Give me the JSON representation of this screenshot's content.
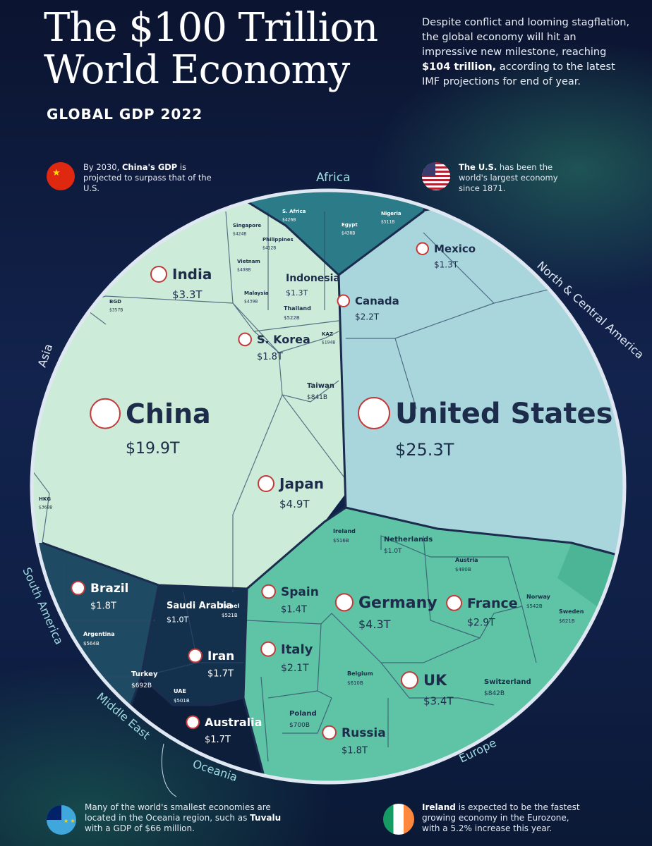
{
  "header": {
    "title": "The $100 Trillion World Economy",
    "subtitle": "GLOBAL GDP 2022",
    "intro_pre": "Despite conflict and looming stagflation, the global economy will hit an impressive new milestone, reaching ",
    "intro_bold": "$104 trillion,",
    "intro_post": " according to the latest IMF projections for end of year."
  },
  "notes": {
    "china_pre": "By 2030, ",
    "china_bold": "China's GDP",
    "china_post": " is projected to surpass that of the U.S.",
    "us_bold": "The U.S.",
    "us_post": " has been the world's largest economy since 1871.",
    "oceania_pre": "Many of the world's smallest economies are located in the Oceania region, such as ",
    "oceania_bold": "Tuvalu",
    "oceania_post": " with a GDP of $66 million.",
    "ireland_bold": "Ireland",
    "ireland_post": " is expected to be the fastest growing economy in the Eurozone, with a 5.2% increase this year."
  },
  "regions": [
    "Africa",
    "North & Central America",
    "Asia",
    "South America",
    "Middle East",
    "Oceania",
    "Europe"
  ],
  "colors": {
    "asia": "#cdebd9",
    "north_america": "#a9d6dc",
    "europe": "#5fc4a5",
    "south_america": "#1f4a63",
    "middle_east": "#13314d",
    "oceania": "#0c1e3a",
    "africa": "#2c7b88",
    "border": "#1b2c4e"
  },
  "chart_data": {
    "type": "treemap",
    "title": "The $100 Trillion World Economy",
    "subtitle": "GLOBAL GDP 2022",
    "total": "$104 trillion",
    "countries": [
      {
        "name": "United States",
        "value": "$25.3T"
      },
      {
        "name": "China",
        "value": "$19.9T"
      },
      {
        "name": "Japan",
        "value": "$4.9T"
      },
      {
        "name": "Germany",
        "value": "$4.3T"
      },
      {
        "name": "UK",
        "value": "$3.4T"
      },
      {
        "name": "India",
        "value": "$3.3T"
      },
      {
        "name": "France",
        "value": "$2.9T"
      },
      {
        "name": "Canada",
        "value": "$2.2T"
      },
      {
        "name": "Italy",
        "value": "$2.1T"
      },
      {
        "name": "S. Korea",
        "value": "$1.8T"
      },
      {
        "name": "Brazil",
        "value": "$1.8T"
      },
      {
        "name": "Russia",
        "value": "$1.8T"
      },
      {
        "name": "Iran",
        "value": "$1.7T"
      },
      {
        "name": "Australia",
        "value": "$1.7T"
      },
      {
        "name": "Spain",
        "value": "$1.4T"
      },
      {
        "name": "Mexico",
        "value": "$1.3T"
      },
      {
        "name": "Indonesia",
        "value": "$1.3T"
      },
      {
        "name": "Saudi Arabia",
        "value": "$1.0T"
      },
      {
        "name": "Netherlands",
        "value": "$1.0T"
      },
      {
        "name": "Switzerland",
        "value": "$842B"
      },
      {
        "name": "Taiwan",
        "value": "$841B"
      },
      {
        "name": "Poland",
        "value": "$700B"
      },
      {
        "name": "Turkey",
        "value": "$692B"
      },
      {
        "name": "Belgium",
        "value": "$610B"
      },
      {
        "name": "Sweden",
        "value": "$621B"
      },
      {
        "name": "Argentina",
        "value": "$564B"
      },
      {
        "name": "Norway",
        "value": "$542B"
      },
      {
        "name": "Israel",
        "value": "$521B"
      },
      {
        "name": "Ireland",
        "value": "$516B"
      },
      {
        "name": "UAE",
        "value": "$501B"
      },
      {
        "name": "Austria",
        "value": "$480B"
      },
      {
        "name": "Thailand",
        "value": "$522B"
      },
      {
        "name": "Nigeria",
        "value": "$511B"
      },
      {
        "name": "Egypt",
        "value": "$438B"
      },
      {
        "name": "S. Africa",
        "value": "$426B"
      },
      {
        "name": "Singapore",
        "value": "$424B"
      },
      {
        "name": "Philippines",
        "value": "$412B"
      },
      {
        "name": "Vietnam",
        "value": "$408B"
      },
      {
        "name": "Malaysia",
        "value": "$439B"
      },
      {
        "name": "KAZ",
        "value": "$194B"
      },
      {
        "name": "BGD",
        "value": "$357B"
      },
      {
        "name": "HKG",
        "value": "$368B"
      }
    ]
  }
}
